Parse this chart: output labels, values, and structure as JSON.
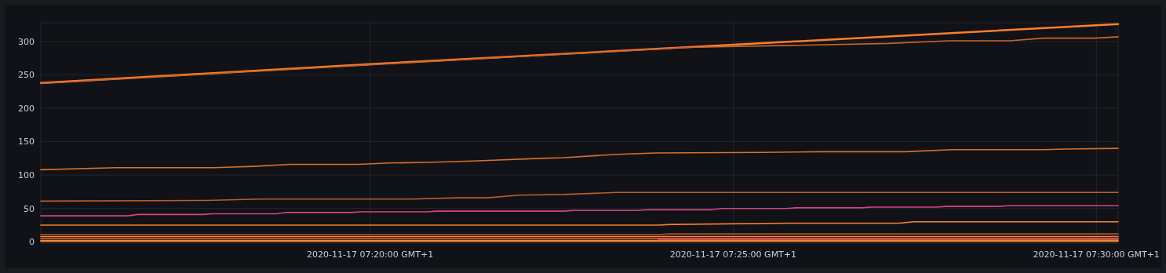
{
  "chart_data": {
    "type": "line",
    "xlim": [
      "2020-11-17T07:15:28",
      "2020-11-17T07:30:18"
    ],
    "xticks": [
      {
        "value": "2020-11-17T07:20:00",
        "label": "2020-11-17 07:20:00 GMT+1"
      },
      {
        "value": "2020-11-17T07:25:00",
        "label": "2020-11-17 07:25:00 GMT+1"
      },
      {
        "value": "2020-11-17T07:30:00",
        "label": "2020-11-17 07:30:00 GMT+1"
      }
    ],
    "ylim": [
      -2,
      328
    ],
    "yticks": [
      0,
      50,
      100,
      150,
      200,
      250,
      300
    ],
    "grid": true,
    "line_style": "solid",
    "marker": "none",
    "series": [
      {
        "color": "#ff7f2a",
        "x": [
          "2020-11-17T07:15:28",
          "2020-11-17T07:20:00",
          "2020-11-17T07:25:00",
          "2020-11-17T07:30:18"
        ],
        "values": [
          238,
          266,
          295,
          326
        ]
      },
      {
        "color": "#c8652c",
        "x": [
          "2020-11-17T07:15:28",
          "2020-11-17T07:20:00",
          "2020-11-17T07:24:21",
          "2020-11-17T07:27:08",
          "2020-11-17T07:27:58",
          "2020-11-17T07:28:48",
          "2020-11-17T07:29:17",
          "2020-11-17T07:29:59",
          "2020-11-17T07:30:18"
        ],
        "values": [
          237,
          265,
          291,
          297,
          301,
          301,
          305,
          305,
          307
        ]
      },
      {
        "color": "#d8702c",
        "x": [
          "2020-11-17T07:15:28",
          "2020-11-17T07:16:30",
          "2020-11-17T07:17:51",
          "2020-11-17T07:18:23",
          "2020-11-17T07:18:54",
          "2020-11-17T07:19:51",
          "2020-11-17T07:20:16",
          "2020-11-17T07:20:47",
          "2020-11-17T07:21:25",
          "2020-11-17T07:22:21",
          "2020-11-17T07:22:40",
          "2020-11-17T07:23:24",
          "2020-11-17T07:23:56",
          "2020-11-17T07:25:24",
          "2020-11-17T07:26:14",
          "2020-11-17T07:27:23",
          "2020-11-17T07:28:01",
          "2020-11-17T07:29:16",
          "2020-11-17T07:29:35",
          "2020-11-17T07:30:18"
        ],
        "values": [
          108,
          111,
          111,
          113,
          116,
          116,
          118,
          119,
          121,
          125,
          126,
          131,
          133,
          134,
          135,
          135,
          138,
          138,
          139,
          140
        ]
      },
      {
        "color": "#b85e2a",
        "x": [
          "2020-11-17T07:15:28",
          "2020-11-17T07:17:45",
          "2020-11-17T07:18:29",
          "2020-11-17T07:20:35",
          "2020-11-17T07:21:12",
          "2020-11-17T07:21:37",
          "2020-11-17T07:22:03",
          "2020-11-17T07:22:40",
          "2020-11-17T07:23:24",
          "2020-11-17T07:30:18"
        ],
        "values": [
          61,
          62,
          64,
          64,
          66,
          66,
          70,
          71,
          74,
          74
        ]
      },
      {
        "color": "#d6467a",
        "x": [
          "2020-11-17T07:15:28",
          "2020-11-17T07:16:40",
          "2020-11-17T07:16:48",
          "2020-11-17T07:17:42",
          "2020-11-17T07:17:50",
          "2020-11-17T07:18:43",
          "2020-11-17T07:18:51",
          "2020-11-17T07:19:44",
          "2020-11-17T07:19:52",
          "2020-11-17T07:20:47",
          "2020-11-17T07:20:55",
          "2020-11-17T07:22:40",
          "2020-11-17T07:22:48",
          "2020-11-17T07:23:41",
          "2020-11-17T07:23:49",
          "2020-11-17T07:24:42",
          "2020-11-17T07:24:50",
          "2020-11-17T07:25:44",
          "2020-11-17T07:25:52",
          "2020-11-17T07:26:46",
          "2020-11-17T07:26:54",
          "2020-11-17T07:27:48",
          "2020-11-17T07:27:56",
          "2020-11-17T07:28:39",
          "2020-11-17T07:28:47",
          "2020-11-17T07:30:18"
        ],
        "values": [
          39,
          39,
          41,
          41,
          42,
          42,
          44,
          44,
          45,
          45,
          46,
          46,
          47,
          47,
          48,
          48,
          50,
          50,
          51,
          51,
          52,
          52,
          53,
          53,
          54,
          54
        ]
      },
      {
        "color": "#ff7f2a",
        "x": [
          "2020-11-17T07:15:28",
          "2020-11-17T07:23:58",
          "2020-11-17T07:24:08",
          "2020-11-17T07:25:46",
          "2020-11-17T07:27:17",
          "2020-11-17T07:27:29",
          "2020-11-17T07:30:18"
        ],
        "values": [
          25,
          25,
          26,
          28,
          28,
          30,
          30
        ]
      },
      {
        "color": "#a8582a",
        "x": [
          "2020-11-17T07:15:28",
          "2020-11-17T07:23:58",
          "2020-11-17T07:24:08",
          "2020-11-17T07:30:18"
        ],
        "values": [
          11,
          11,
          12,
          12
        ]
      },
      {
        "color": "#ff7f2a",
        "x": [
          "2020-11-17T07:15:28",
          "2020-11-17T07:30:18"
        ],
        "values": [
          8,
          8
        ]
      },
      {
        "color": "#e07030",
        "x": [
          "2020-11-17T07:15:28",
          "2020-11-17T07:30:18"
        ],
        "values": [
          5,
          5
        ]
      },
      {
        "color": "#e05070",
        "x": [
          "2020-11-17T07:23:58",
          "2020-11-17T07:30:18"
        ],
        "values": [
          4,
          4
        ]
      },
      {
        "color": "#ff7f2a",
        "x": [
          "2020-11-17T07:15:28",
          "2020-11-17T07:30:18"
        ],
        "values": [
          2,
          2
        ]
      },
      {
        "color": "#f08a3a",
        "x": [
          "2020-11-17T07:15:28",
          "2020-11-17T07:30:18"
        ],
        "values": [
          1,
          1
        ]
      }
    ]
  }
}
